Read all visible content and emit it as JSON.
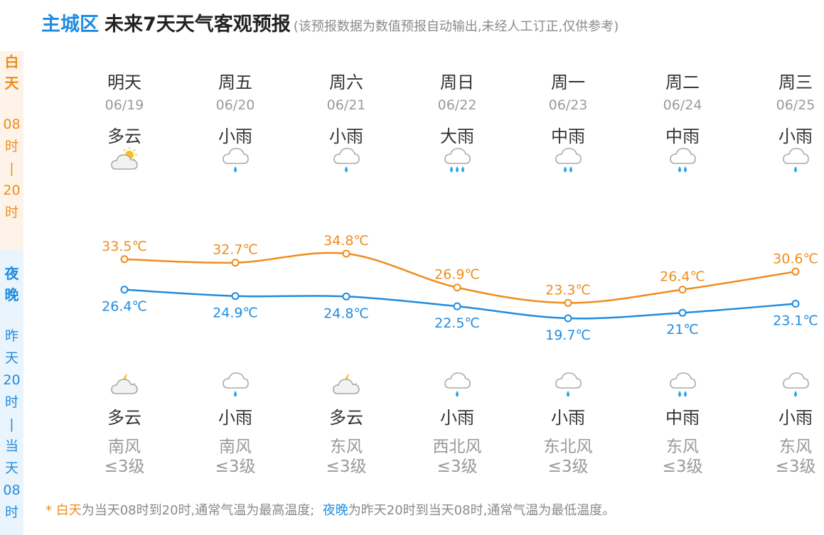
{
  "header": {
    "district": "主城区",
    "title": "未来7天天气客观预报",
    "note": "(该预报数据为数值预报自动输出,未经人工订正,仅供参考)"
  },
  "side": {
    "day": {
      "label": "白天",
      "range": [
        "08",
        "时",
        "|",
        "20",
        "时"
      ]
    },
    "night": {
      "label": "夜晚",
      "range": [
        "昨",
        "天",
        "20",
        "时",
        "|",
        "当",
        "天",
        "08",
        "时"
      ]
    }
  },
  "colors": {
    "high": "#f08c1e",
    "low": "#1f8ce0"
  },
  "days": [
    {
      "name": "明天",
      "date": "06/19",
      "day_weather": "多云",
      "day_icon": "partly-cloudy-day-icon",
      "night_weather": "多云",
      "night_icon": "partly-cloudy-night-icon",
      "wind_dir": "南风",
      "wind_level": "≤3级"
    },
    {
      "name": "周五",
      "date": "06/20",
      "day_weather": "小雨",
      "day_icon": "light-rain-icon",
      "night_weather": "小雨",
      "night_icon": "light-rain-icon",
      "wind_dir": "南风",
      "wind_level": "≤3级"
    },
    {
      "name": "周六",
      "date": "06/21",
      "day_weather": "小雨",
      "day_icon": "light-rain-icon",
      "night_weather": "多云",
      "night_icon": "partly-cloudy-night-icon",
      "wind_dir": "东风",
      "wind_level": "≤3级"
    },
    {
      "name": "周日",
      "date": "06/22",
      "day_weather": "大雨",
      "day_icon": "heavy-rain-icon",
      "night_weather": "小雨",
      "night_icon": "light-rain-icon",
      "wind_dir": "西北风",
      "wind_level": "≤3级"
    },
    {
      "name": "周一",
      "date": "06/23",
      "day_weather": "中雨",
      "day_icon": "moderate-rain-icon",
      "night_weather": "小雨",
      "night_icon": "light-rain-icon",
      "wind_dir": "东北风",
      "wind_level": "≤3级"
    },
    {
      "name": "周二",
      "date": "06/24",
      "day_weather": "中雨",
      "day_icon": "moderate-rain-icon",
      "night_weather": "中雨",
      "night_icon": "moderate-rain-icon",
      "wind_dir": "东风",
      "wind_level": "≤3级"
    },
    {
      "name": "周三",
      "date": "06/25",
      "day_weather": "小雨",
      "day_icon": "light-rain-icon",
      "night_weather": "小雨",
      "night_icon": "light-rain-icon",
      "wind_dir": "东风",
      "wind_level": "≤3级"
    }
  ],
  "chart_data": {
    "type": "line",
    "categories": [
      "06/19",
      "06/20",
      "06/21",
      "06/22",
      "06/23",
      "06/24",
      "06/25"
    ],
    "unit": "℃",
    "series": [
      {
        "values": [
          33.5,
          32.7,
          34.8,
          26.9,
          23.3,
          26.4,
          30.6
        ],
        "labels": [
          "33.5℃",
          "32.7℃",
          "34.8℃",
          "26.9℃",
          "23.3℃",
          "26.4℃",
          "30.6℃"
        ],
        "color": "#f08c1e"
      },
      {
        "values": [
          26.4,
          24.9,
          24.8,
          22.5,
          19.7,
          21,
          23.1
        ],
        "labels": [
          "26.4℃",
          "24.9℃",
          "24.8℃",
          "22.5℃",
          "19.7℃",
          "21℃",
          "23.1℃"
        ],
        "color": "#1f8ce0"
      }
    ],
    "ylim": [
      19.7,
      34.8
    ],
    "grid": false,
    "legend": "none"
  },
  "footer": {
    "asterisk": "*",
    "day_word": "白天",
    "day_text": "为当天08时到20时,通常气温为最高温度;",
    "night_word": "夜晚",
    "night_text": "为昨天20时到当天08时,通常气温为最低温度。"
  }
}
